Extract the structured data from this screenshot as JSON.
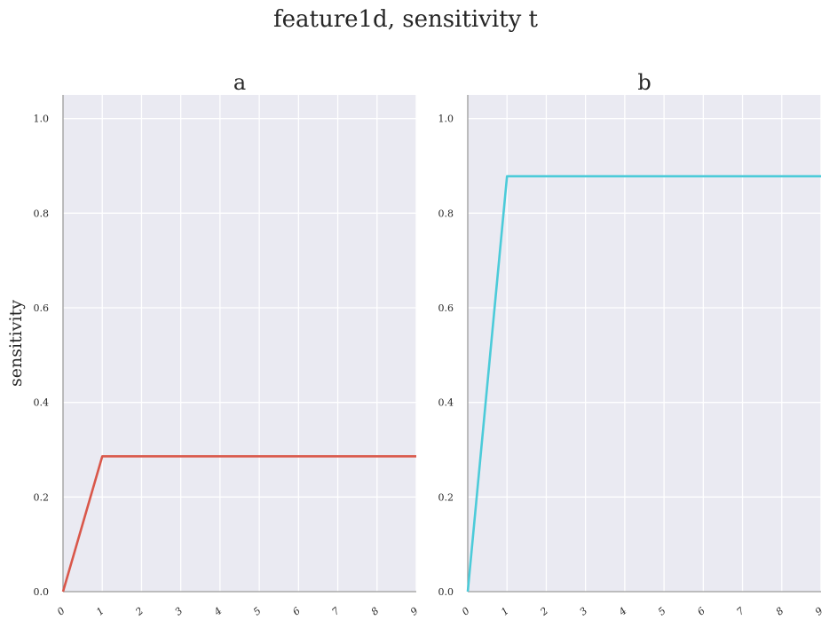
{
  "figure": {
    "title": "feature1d, sensitivity t"
  },
  "chart_data": [
    {
      "type": "line",
      "title": "a",
      "xlabel": "",
      "ylabel": "sensitivity",
      "x": [
        0,
        1,
        2,
        3,
        4,
        5,
        6,
        7,
        8,
        9
      ],
      "series": [
        {
          "values": [
            0.0,
            0.286,
            0.286,
            0.286,
            0.286,
            0.286,
            0.286,
            0.286,
            0.286,
            0.286
          ],
          "color": "#d9574a"
        }
      ],
      "xlim": [
        0,
        9
      ],
      "ylim": [
        0,
        1.05
      ],
      "xticks": [
        "0",
        "1",
        "2",
        "3",
        "4",
        "5",
        "6",
        "7",
        "8",
        "9"
      ],
      "yticks": [
        "0.0",
        "0.2",
        "0.4",
        "0.6",
        "0.8",
        "1.0"
      ],
      "grid": true,
      "legend": "none"
    },
    {
      "type": "line",
      "title": "b",
      "xlabel": "",
      "ylabel": "",
      "x": [
        0,
        1,
        2,
        3,
        4,
        5,
        6,
        7,
        8,
        9
      ],
      "series": [
        {
          "values": [
            0.0,
            0.878,
            0.878,
            0.878,
            0.878,
            0.878,
            0.878,
            0.878,
            0.878,
            0.878
          ],
          "color": "#4ccbd9"
        }
      ],
      "xlim": [
        0,
        9
      ],
      "ylim": [
        0,
        1.05
      ],
      "xticks": [
        "0",
        "1",
        "2",
        "3",
        "4",
        "5",
        "6",
        "7",
        "8",
        "9"
      ],
      "yticks": [
        "0.0",
        "0.2",
        "0.4",
        "0.6",
        "0.8",
        "1.0"
      ],
      "grid": true,
      "legend": "none"
    }
  ],
  "colors": {
    "plot_background": "#eaeaf2",
    "grid": "#ffffff",
    "axis": "#9a9a9a"
  }
}
